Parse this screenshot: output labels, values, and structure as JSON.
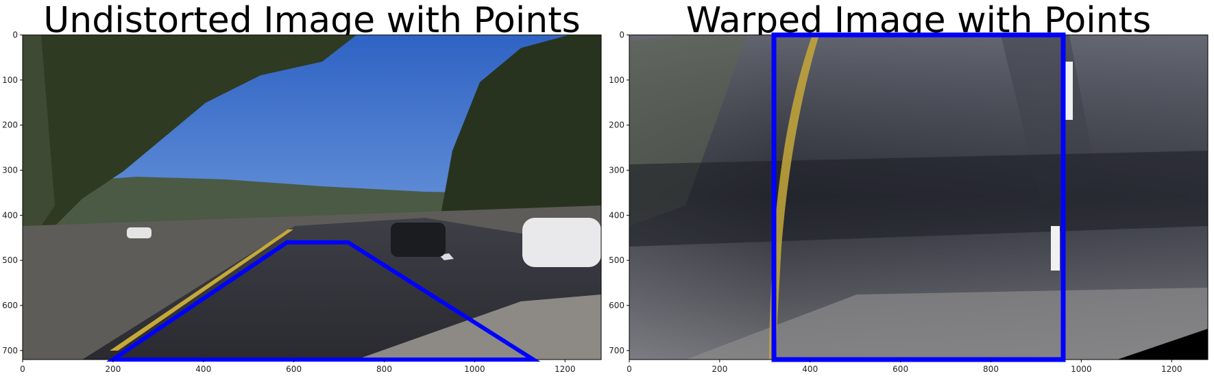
{
  "chart_data": [
    {
      "type": "image",
      "title": "Undistorted Image with Points",
      "xlim": [
        0,
        1280
      ],
      "ylim": [
        720,
        0
      ],
      "xticks": [
        0,
        200,
        400,
        600,
        800,
        1000,
        1200
      ],
      "yticks": [
        0,
        100,
        200,
        300,
        400,
        500,
        600,
        700
      ],
      "image": "road-scene-icon",
      "overlay": {
        "color": "#0000ff",
        "polygon": [
          [
            200,
            720
          ],
          [
            585,
            460
          ],
          [
            720,
            460
          ],
          [
            1130,
            720
          ]
        ]
      }
    },
    {
      "type": "image",
      "title": "Warped Image with Points",
      "xlim": [
        0,
        1280
      ],
      "ylim": [
        720,
        0
      ],
      "xticks": [
        0,
        200,
        400,
        600,
        800,
        1000,
        1200
      ],
      "yticks": [
        0,
        100,
        200,
        300,
        400,
        500,
        600,
        700
      ],
      "image": "warped-road-icon",
      "overlay": {
        "color": "#0000ff",
        "polygon": [
          [
            320,
            0
          ],
          [
            320,
            720
          ],
          [
            960,
            720
          ],
          [
            960,
            0
          ]
        ]
      }
    }
  ]
}
